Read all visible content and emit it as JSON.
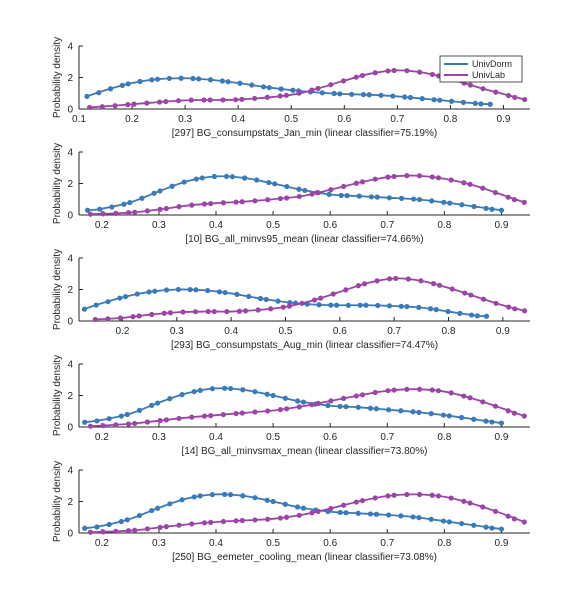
{
  "legend": {
    "placement": "top-right",
    "entries": [
      {
        "name": "UnivDorm",
        "color": "#3a7ab8"
      },
      {
        "name": "UnivLab",
        "color": "#9b46a6"
      }
    ]
  },
  "chart_data": [
    {
      "type": "line",
      "xlabel": "[297] BG_consumpstats_Jan_min (linear classifier=75.19%)",
      "ylabel": "Probability density",
      "xlim": [
        0.1,
        0.95
      ],
      "ylim": [
        0,
        4
      ],
      "xticks": [
        0.1,
        0.2,
        0.3,
        0.4,
        0.5,
        0.6,
        0.7,
        0.8,
        0.9
      ],
      "yticks": [
        0,
        2,
        4
      ],
      "series": [
        {
          "name": "UnivDorm",
          "color": "#3a7ab8",
          "x": [
            0.115,
            0.15,
            0.2,
            0.25,
            0.3,
            0.35,
            0.4,
            0.45,
            0.5,
            0.55,
            0.6,
            0.65,
            0.7,
            0.75,
            0.8,
            0.85,
            0.875
          ],
          "y": [
            0.8,
            1.2,
            1.65,
            1.9,
            1.95,
            1.85,
            1.65,
            1.4,
            1.2,
            1.05,
            0.95,
            0.9,
            0.8,
            0.65,
            0.5,
            0.35,
            0.3
          ]
        },
        {
          "name": "UnivLab",
          "color": "#9b46a6",
          "x": [
            0.12,
            0.2,
            0.3,
            0.4,
            0.5,
            0.55,
            0.6,
            0.65,
            0.7,
            0.75,
            0.8,
            0.85,
            0.9,
            0.94
          ],
          "y": [
            0.1,
            0.3,
            0.55,
            0.6,
            0.9,
            1.3,
            1.8,
            2.25,
            2.45,
            2.3,
            1.9,
            1.4,
            0.95,
            0.6
          ]
        }
      ]
    },
    {
      "type": "line",
      "xlabel": "[10] BG_all_minvs95_mean (linear classifier=74.66%)",
      "ylabel": "Probability density",
      "xlim": [
        0.16,
        0.95
      ],
      "ylim": [
        0,
        4
      ],
      "xticks": [
        0.2,
        0.3,
        0.4,
        0.5,
        0.6,
        0.7,
        0.8,
        0.9
      ],
      "yticks": [
        0,
        2,
        4
      ],
      "series": [
        {
          "name": "UnivDorm",
          "color": "#3a7ab8",
          "x": [
            0.175,
            0.2,
            0.25,
            0.3,
            0.35,
            0.4,
            0.45,
            0.5,
            0.55,
            0.6,
            0.65,
            0.7,
            0.75,
            0.8,
            0.85,
            0.9
          ],
          "y": [
            0.3,
            0.4,
            0.8,
            1.5,
            2.15,
            2.45,
            2.35,
            2.0,
            1.6,
            1.3,
            1.2,
            1.1,
            1.0,
            0.8,
            0.55,
            0.3
          ]
        },
        {
          "name": "UnivLab",
          "color": "#9b46a6",
          "x": [
            0.18,
            0.25,
            0.3,
            0.35,
            0.4,
            0.45,
            0.5,
            0.55,
            0.6,
            0.65,
            0.7,
            0.75,
            0.8,
            0.85,
            0.9,
            0.94
          ],
          "y": [
            0.05,
            0.15,
            0.35,
            0.6,
            0.75,
            0.85,
            1.0,
            1.2,
            1.6,
            2.05,
            2.4,
            2.5,
            2.3,
            1.9,
            1.3,
            0.8
          ]
        }
      ]
    },
    {
      "type": "line",
      "xlabel": "[293] BG_consumpstats_Aug_min (linear classifier=74.47%)",
      "ylabel": "Probability density",
      "xlim": [
        0.12,
        0.95
      ],
      "ylim": [
        0,
        4
      ],
      "xticks": [
        0.2,
        0.3,
        0.4,
        0.5,
        0.6,
        0.7,
        0.8,
        0.9
      ],
      "yticks": [
        0,
        2,
        4
      ],
      "series": [
        {
          "name": "UnivDorm",
          "color": "#3a7ab8",
          "x": [
            0.13,
            0.15,
            0.2,
            0.25,
            0.3,
            0.35,
            0.4,
            0.45,
            0.5,
            0.55,
            0.6,
            0.65,
            0.7,
            0.75,
            0.8,
            0.85,
            0.87
          ],
          "y": [
            0.75,
            1.0,
            1.5,
            1.85,
            2.0,
            1.95,
            1.75,
            1.45,
            1.2,
            1.05,
            1.0,
            1.0,
            0.95,
            0.85,
            0.6,
            0.35,
            0.3
          ]
        },
        {
          "name": "UnivLab",
          "color": "#9b46a6",
          "x": [
            0.15,
            0.2,
            0.25,
            0.3,
            0.35,
            0.4,
            0.45,
            0.5,
            0.55,
            0.6,
            0.65,
            0.7,
            0.75,
            0.8,
            0.85,
            0.9,
            0.94
          ],
          "y": [
            0.1,
            0.2,
            0.4,
            0.55,
            0.6,
            0.6,
            0.7,
            0.9,
            1.3,
            1.85,
            2.4,
            2.7,
            2.55,
            2.1,
            1.55,
            1.0,
            0.65
          ]
        }
      ]
    },
    {
      "type": "line",
      "xlabel": "[14] BG_all_minvsmax_mean (linear classifier=73.80%)",
      "ylabel": "Probability density",
      "xlim": [
        0.16,
        0.95
      ],
      "ylim": [
        0,
        4
      ],
      "xticks": [
        0.2,
        0.3,
        0.4,
        0.5,
        0.6,
        0.7,
        0.8,
        0.9
      ],
      "yticks": [
        0,
        2,
        4
      ],
      "series": [
        {
          "name": "UnivDorm",
          "color": "#3a7ab8",
          "x": [
            0.17,
            0.2,
            0.25,
            0.3,
            0.35,
            0.4,
            0.45,
            0.5,
            0.55,
            0.6,
            0.65,
            0.7,
            0.75,
            0.8,
            0.85,
            0.9
          ],
          "y": [
            0.3,
            0.45,
            0.85,
            1.55,
            2.15,
            2.45,
            2.35,
            2.0,
            1.6,
            1.35,
            1.25,
            1.1,
            0.95,
            0.75,
            0.5,
            0.25
          ]
        },
        {
          "name": "UnivLab",
          "color": "#9b46a6",
          "x": [
            0.18,
            0.25,
            0.3,
            0.35,
            0.4,
            0.45,
            0.5,
            0.55,
            0.6,
            0.65,
            0.7,
            0.75,
            0.8,
            0.85,
            0.9,
            0.94
          ],
          "y": [
            0.05,
            0.2,
            0.4,
            0.6,
            0.75,
            0.9,
            1.05,
            1.3,
            1.65,
            2.0,
            2.3,
            2.4,
            2.25,
            1.8,
            1.2,
            0.7
          ]
        }
      ]
    },
    {
      "type": "line",
      "xlabel": "[250] BG_eemeter_cooling_mean (linear classifier=73.08%)",
      "ylabel": "Probability density",
      "xlim": [
        0.16,
        0.95
      ],
      "ylim": [
        0,
        4
      ],
      "xticks": [
        0.2,
        0.3,
        0.4,
        0.5,
        0.6,
        0.7,
        0.8,
        0.9
      ],
      "yticks": [
        0,
        2,
        4
      ],
      "series": [
        {
          "name": "UnivDorm",
          "color": "#3a7ab8",
          "x": [
            0.17,
            0.2,
            0.25,
            0.3,
            0.35,
            0.4,
            0.45,
            0.5,
            0.55,
            0.6,
            0.65,
            0.7,
            0.75,
            0.8,
            0.85,
            0.9
          ],
          "y": [
            0.3,
            0.45,
            0.9,
            1.6,
            2.2,
            2.45,
            2.35,
            2.0,
            1.6,
            1.35,
            1.25,
            1.15,
            1.0,
            0.75,
            0.5,
            0.25
          ]
        },
        {
          "name": "UnivLab",
          "color": "#9b46a6",
          "x": [
            0.18,
            0.25,
            0.3,
            0.35,
            0.4,
            0.45,
            0.5,
            0.55,
            0.6,
            0.65,
            0.7,
            0.75,
            0.8,
            0.85,
            0.9,
            0.94
          ],
          "y": [
            0.05,
            0.15,
            0.35,
            0.55,
            0.7,
            0.8,
            0.9,
            1.15,
            1.55,
            2.0,
            2.35,
            2.45,
            2.3,
            1.85,
            1.25,
            0.7
          ]
        }
      ]
    }
  ]
}
